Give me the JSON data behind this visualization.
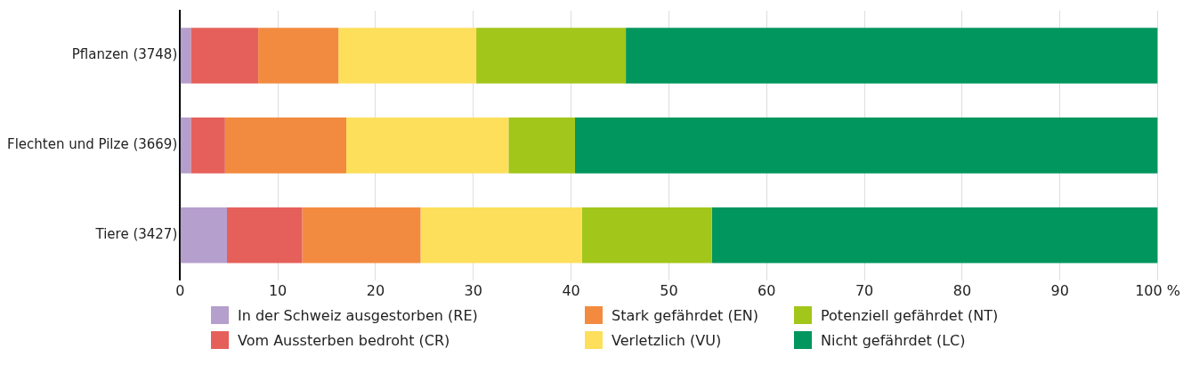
{
  "chart_data": {
    "type": "bar",
    "orientation": "horizontal",
    "stacked": true,
    "categories": [
      "Pflanzen (3748)",
      "Flechten und Pilze (3669)",
      "Tiere (3427)"
    ],
    "series": [
      {
        "name": "In der Schweiz ausgestorben (RE)",
        "color": "#b59fcd",
        "values": [
          1.1,
          1.1,
          4.8
        ]
      },
      {
        "name": "Vom Aussterben bedroht (CR)",
        "color": "#e5605a",
        "values": [
          6.9,
          3.5,
          7.7
        ]
      },
      {
        "name": "Stark gefährdet (EN)",
        "color": "#f28b3f",
        "values": [
          8.2,
          12.4,
          12.1
        ]
      },
      {
        "name": "Verletzlich (VU)",
        "color": "#fedf5c",
        "values": [
          14.1,
          16.6,
          16.5
        ]
      },
      {
        "name": "Potenziell gefährdet (NT)",
        "color": "#a2c61a",
        "values": [
          15.3,
          6.8,
          13.3
        ]
      },
      {
        "name": "Nicht gefährdet (LC)",
        "color": "#00965e",
        "values": [
          54.4,
          59.6,
          45.6
        ]
      }
    ],
    "xlim": [
      0,
      100
    ],
    "xticks": [
      0,
      10,
      20,
      30,
      40,
      50,
      60,
      70,
      80,
      90,
      {
        "value": 100,
        "label": "100 %"
      }
    ],
    "grid": "x",
    "legend": "bottom"
  }
}
